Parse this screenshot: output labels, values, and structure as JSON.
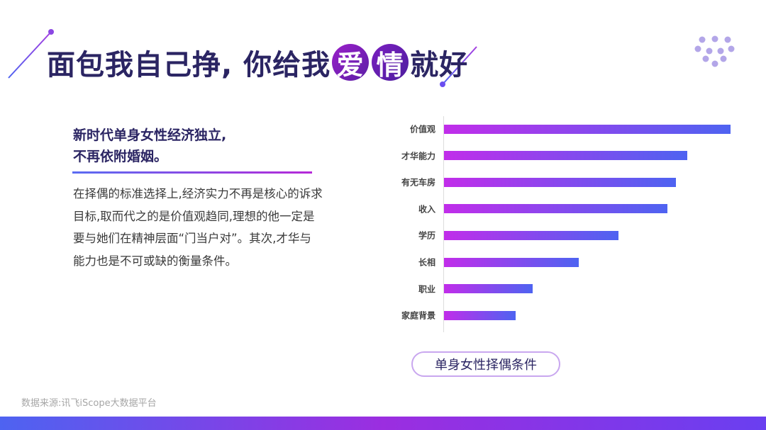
{
  "header": {
    "title_part1": "面包我自己挣, 你给我",
    "circle1": "爱",
    "circle2": "情",
    "title_part2": "就好"
  },
  "left_panel": {
    "subtitle_line1": "新时代单身女性经济独立,",
    "subtitle_line2": "不再依附婚姻。",
    "body": "在择偶的标准选择上,经济实力不再是核心的诉求目标,取而代之的是价值观趋同,理想的他一定是要与她们在精神层面“门当户对”。其次,才华与能力也是不可或缺的衡量条件。"
  },
  "chart_data": {
    "type": "bar",
    "orientation": "horizontal",
    "categories": [
      "价值观",
      "才华能力",
      "有无车房",
      "收入",
      "学历",
      "长相",
      "职业",
      "家庭背景"
    ],
    "values": [
      100,
      85,
      81,
      78,
      61,
      47,
      31,
      25
    ],
    "xlim": [
      0,
      100
    ],
    "title": "单身女性择偶条件",
    "grid": false,
    "x_axis_visible": false,
    "colors": {
      "bar_start": "#c12dea",
      "bar_end": "#4e63f1"
    }
  },
  "footer": {
    "source": "数据来源:讯飞iScope大数据平台"
  },
  "colors": {
    "title": "#2b2563",
    "accent_purple": "#8b2fd0",
    "dots": "#b3a6e8"
  },
  "icons": {
    "decoration": "dot-grid-icon"
  }
}
